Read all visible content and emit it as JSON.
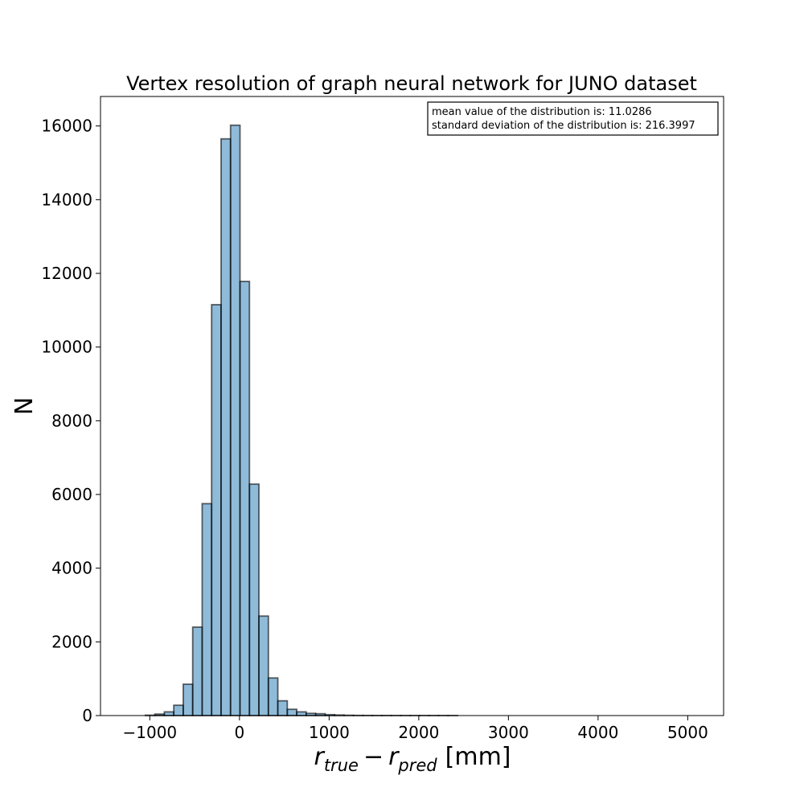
{
  "chart_data": {
    "type": "bar",
    "title": "Vertex resolution of graph neural network for JUNO dataset",
    "ylabel": "N",
    "xlabel": {
      "r1": "r",
      "sub1": "true",
      "minus": "−",
      "r2": "r",
      "sub2": "pred",
      "unit": "[mm]"
    },
    "xlim": [
      -1550,
      5400
    ],
    "ylim": [
      0,
      16800
    ],
    "xticks": [
      -1000,
      0,
      1000,
      2000,
      3000,
      4000,
      5000
    ],
    "xtick_labels": [
      "−1000",
      "0",
      "1000",
      "2000",
      "3000",
      "4000",
      "5000"
    ],
    "yticks": [
      0,
      2000,
      4000,
      6000,
      8000,
      10000,
      12000,
      14000,
      16000
    ],
    "ytick_labels": [
      "0",
      "2000",
      "4000",
      "6000",
      "8000",
      "10000",
      "12000",
      "14000",
      "16000"
    ],
    "grid": false,
    "bar_color": "#1f77b4",
    "bar_alpha": 0.5,
    "bar_edge_color": "#000000",
    "bins": {
      "start": -1260,
      "width": 105.5,
      "counts": [
        0,
        0,
        10,
        40,
        100,
        280,
        850,
        2400,
        5750,
        11150,
        15650,
        16020,
        11780,
        6280,
        2700,
        1020,
        400,
        170,
        100,
        60,
        50,
        25,
        15,
        8,
        4,
        3,
        2,
        2,
        1,
        1,
        1,
        1,
        1,
        1,
        1,
        0,
        0,
        0,
        0,
        0,
        0,
        0,
        0,
        0,
        0,
        0,
        0,
        0,
        0,
        0,
        0,
        0,
        0,
        0,
        0,
        0,
        0,
        0,
        0,
        0,
        0,
        0
      ]
    },
    "annotation": {
      "line1": "mean value of the distribution is: 11.0286",
      "line2": "standard deviation of the distribution is: 216.3997"
    }
  }
}
